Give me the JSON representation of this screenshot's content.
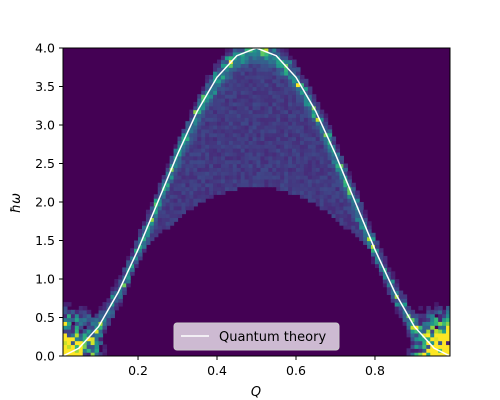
{
  "chart_data": {
    "type": "heatmap",
    "title": "",
    "xlabel": "Q",
    "ylabel": "ħω",
    "xlim": [
      0.01,
      0.99
    ],
    "ylim": [
      0.0,
      4.0
    ],
    "x_ticks": [
      "0.2",
      "0.4",
      "0.6",
      "0.8"
    ],
    "x_tick_values": [
      0.2,
      0.4,
      0.6,
      0.8
    ],
    "y_ticks": [
      "0.0",
      "0.5",
      "1.0",
      "1.5",
      "2.0",
      "2.5",
      "3.0",
      "3.5",
      "4.0"
    ],
    "y_tick_values": [
      0.0,
      0.5,
      1.0,
      1.5,
      2.0,
      2.5,
      3.0,
      3.5,
      4.0
    ],
    "colormap": "viridis",
    "grid": false,
    "legend_position": "bottom-center",
    "series": [
      {
        "name": "Quantum theory",
        "type": "line",
        "color": "#ffffff",
        "x": [
          0.01,
          0.05,
          0.1,
          0.15,
          0.2,
          0.25,
          0.3,
          0.35,
          0.4,
          0.45,
          0.5,
          0.55,
          0.6,
          0.65,
          0.7,
          0.75,
          0.8,
          0.85,
          0.9,
          0.95,
          0.99
        ],
        "y": [
          0.0,
          0.1,
          0.38,
          0.83,
          1.38,
          2.0,
          2.62,
          3.18,
          3.62,
          3.9,
          4.0,
          3.9,
          3.62,
          3.18,
          2.62,
          2.0,
          1.38,
          0.83,
          0.38,
          0.1,
          0.0
        ]
      }
    ]
  },
  "colors": {
    "heatmap_background": "#440154",
    "curve": "#ffffff",
    "legend_background": "#d9cadd"
  }
}
